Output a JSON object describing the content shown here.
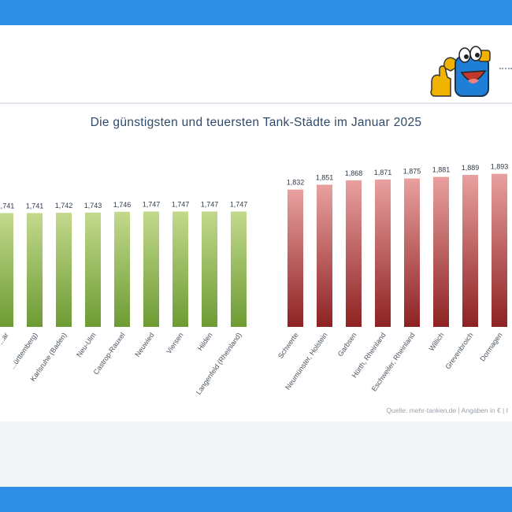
{
  "colors": {
    "frame": "#2f8ee6",
    "cheap_top": "#c3d98d",
    "cheap_bottom": "#6d9b33",
    "expensive_top": "#e9a0a0",
    "expensive_bottom": "#8e2222",
    "title": "#2f4a6b"
  },
  "icons": {
    "mascot": "blue-fuel-mascot-thumbs-up-icon"
  },
  "chart_data": {
    "type": "bar",
    "title": "Die günstigsten und teuersten Tank-Städte im Januar 2025",
    "xlabel": "",
    "ylabel": "",
    "ylim": [
      1.3,
      1.95
    ],
    "grid": false,
    "legend": "none",
    "source": "Quelle: mehr-tanken.de | Angaben in € | I",
    "groups": [
      {
        "name": "",
        "color_key": "cheap",
        "categories": [
          "...ar",
          "...ürttemberg)",
          "Karlsruhe (Baden)",
          "Neu-Ulm",
          "Castrop-Rauxel",
          "Neuwied",
          "Viersen",
          "Hilden",
          "Langenfeld (Rheinland)"
        ],
        "labels": [
          "1,741",
          "1,741",
          "1,742",
          "1,743",
          "1,746",
          "1,747",
          "1,747",
          "1,747",
          "1,747"
        ],
        "values": [
          1.741,
          1.741,
          1.742,
          1.743,
          1.746,
          1.747,
          1.747,
          1.747,
          1.747
        ]
      },
      {
        "name": "",
        "color_key": "expensive",
        "categories": [
          "Schwerte",
          "Neumünster, Holstein",
          "Garbsen",
          "Hürth, Rheinland",
          "Eschweiler, Rheinland",
          "Willich",
          "Grevenbroich",
          "Dormagen"
        ],
        "labels": [
          "1,832",
          "1,851",
          "1,868",
          "1,871",
          "1,875",
          "1,881",
          "1,889",
          "1,893"
        ],
        "values": [
          1.832,
          1.851,
          1.868,
          1.871,
          1.875,
          1.881,
          1.889,
          1.893
        ]
      }
    ]
  }
}
